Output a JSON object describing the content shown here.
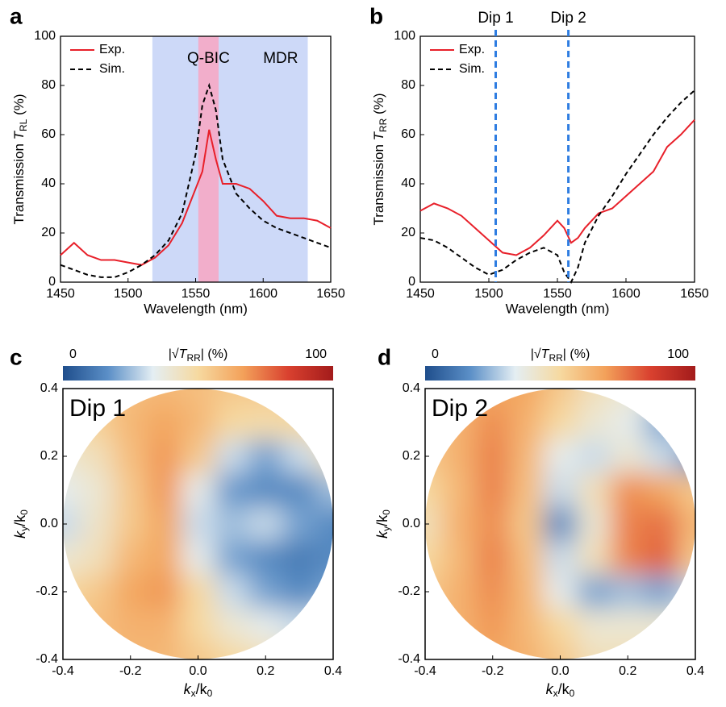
{
  "chart_data": [
    {
      "panel": "a",
      "type": "line",
      "xlabel": "Wavelength (nm)",
      "ylabel": [
        "Transmission ",
        "T",
        "RL",
        " (%)"
      ],
      "xlim": [
        1450,
        1650
      ],
      "xticks": [
        1450,
        1500,
        1550,
        1600,
        1650
      ],
      "ylim": [
        0,
        100
      ],
      "yticks": [
        0,
        20,
        40,
        60,
        80,
        100
      ],
      "bands": [
        {
          "label": "MDR",
          "range": [
            1518,
            1633
          ],
          "color": "#cdd9f8",
          "label_color": "#3a78d8"
        },
        {
          "label": "Q-BIC",
          "range": [
            1552,
            1567
          ],
          "color": "#f2aecb",
          "label_color": "#e8202a"
        }
      ],
      "x": [
        1450,
        1460,
        1470,
        1480,
        1490,
        1500,
        1510,
        1520,
        1530,
        1540,
        1550,
        1555,
        1560,
        1565,
        1570,
        1580,
        1590,
        1600,
        1610,
        1620,
        1630,
        1640,
        1650
      ],
      "series": [
        {
          "name": "Exp.",
          "color": "#e8202a",
          "dash": false,
          "values": [
            11,
            16,
            11,
            9,
            9,
            8,
            7,
            10,
            15,
            24,
            38,
            45,
            62,
            50,
            40,
            40,
            38,
            33,
            27,
            26,
            26,
            25,
            22
          ]
        },
        {
          "name": "Sim.",
          "color": "#000000",
          "dash": true,
          "values": [
            7,
            5,
            3,
            2,
            2,
            4,
            7,
            11,
            17,
            28,
            52,
            72,
            80,
            70,
            50,
            36,
            30,
            25,
            22,
            20,
            18,
            16,
            14
          ]
        }
      ]
    },
    {
      "panel": "b",
      "type": "line",
      "xlabel": "Wavelength (nm)",
      "ylabel": [
        "Transmission ",
        "T",
        "RR",
        " (%)"
      ],
      "xlim": [
        1450,
        1650
      ],
      "xticks": [
        1450,
        1500,
        1550,
        1600,
        1650
      ],
      "ylim": [
        0,
        100
      ],
      "yticks": [
        0,
        20,
        40,
        60,
        80,
        100
      ],
      "vlines": [
        {
          "label": "Dip 1",
          "x": 1505,
          "color": "#2f7de1"
        },
        {
          "label": "Dip 2",
          "x": 1558,
          "color": "#2f7de1"
        }
      ],
      "x": [
        1450,
        1460,
        1470,
        1480,
        1490,
        1500,
        1510,
        1520,
        1530,
        1540,
        1550,
        1555,
        1560,
        1565,
        1570,
        1580,
        1590,
        1600,
        1610,
        1620,
        1630,
        1640,
        1650
      ],
      "series": [
        {
          "name": "Exp.",
          "color": "#e8202a",
          "dash": false,
          "values": [
            29,
            32,
            30,
            27,
            22,
            17,
            12,
            11,
            14,
            19,
            25,
            22,
            16,
            18,
            22,
            28,
            30,
            35,
            40,
            45,
            55,
            60,
            66
          ]
        },
        {
          "name": "Sim.",
          "color": "#000000",
          "dash": true,
          "values": [
            18,
            17,
            14,
            10,
            6,
            3,
            5,
            9,
            12,
            14,
            11,
            4,
            0,
            6,
            16,
            27,
            35,
            44,
            52,
            60,
            67,
            73,
            78
          ]
        }
      ]
    },
    {
      "panel": "c",
      "type": "heatmap",
      "annotation": "Dip 1",
      "xlabel": [
        "k",
        "x",
        "/k",
        "0"
      ],
      "ylabel": [
        "k",
        "y",
        "/k",
        "0"
      ],
      "cbar_label": [
        "|√",
        "T",
        "RR",
        "| (%)"
      ],
      "clim": [
        0,
        100
      ],
      "cticks": [
        0,
        100
      ],
      "colormap": [
        "#1f4e8c",
        "#5b8fc7",
        "#e4eef3",
        "#f6d9a0",
        "#f3a15a",
        "#d9412f",
        "#a31b1b"
      ],
      "xlim": [
        -0.4,
        0.4
      ],
      "ylim": [
        -0.4,
        0.4
      ],
      "xticks": [
        -0.4,
        -0.2,
        {
          "value": 0,
          "label": "0.0"
        },
        0.2,
        0.4
      ],
      "yticks": [
        -0.4,
        -0.2,
        {
          "value": 0,
          "label": "0.0"
        },
        0.2,
        0.4
      ],
      "x": [
        -0.4,
        -0.3,
        -0.2,
        -0.1,
        0,
        0.1,
        0.2,
        0.3,
        0.4
      ],
      "y": [
        0.4,
        0.3,
        0.2,
        0.1,
        0,
        -0.1,
        -0.2,
        -0.3,
        -0.4
      ],
      "z": [
        [
          55,
          55,
          58,
          60,
          58,
          55,
          55,
          55,
          55
        ],
        [
          50,
          52,
          60,
          65,
          60,
          50,
          48,
          50,
          52
        ],
        [
          40,
          45,
          58,
          68,
          55,
          30,
          20,
          30,
          45
        ],
        [
          35,
          40,
          55,
          68,
          35,
          18,
          15,
          15,
          25
        ],
        [
          30,
          42,
          55,
          65,
          30,
          25,
          30,
          20,
          15
        ],
        [
          40,
          45,
          60,
          65,
          35,
          20,
          15,
          12,
          15
        ],
        [
          50,
          55,
          65,
          68,
          50,
          30,
          20,
          15,
          20
        ],
        [
          55,
          58,
          62,
          62,
          50,
          40,
          35,
          30,
          35
        ],
        [
          55,
          58,
          60,
          60,
          55,
          50,
          45,
          40,
          40
        ]
      ]
    },
    {
      "panel": "d",
      "type": "heatmap",
      "annotation": "Dip 2",
      "xlabel": [
        "k",
        "x",
        "/k",
        "0"
      ],
      "ylabel": [
        "k",
        "y",
        "/k",
        "0"
      ],
      "cbar_label": [
        "|√",
        "T",
        "RR",
        "| (%)"
      ],
      "clim": [
        0,
        100
      ],
      "cticks": [
        0,
        100
      ],
      "colormap": [
        "#1f4e8c",
        "#5b8fc7",
        "#e4eef3",
        "#f6d9a0",
        "#f3a15a",
        "#d9412f",
        "#a31b1b"
      ],
      "xlim": [
        -0.4,
        0.4
      ],
      "ylim": [
        -0.4,
        0.4
      ],
      "xticks": [
        -0.4,
        -0.2,
        {
          "value": 0,
          "label": "0.0"
        },
        0.2,
        0.4
      ],
      "yticks": [
        -0.4,
        -0.2,
        {
          "value": 0,
          "label": "0.0"
        },
        0.2,
        0.4
      ],
      "x": [
        -0.4,
        -0.3,
        -0.2,
        -0.1,
        0,
        0.1,
        0.2,
        0.3,
        0.4
      ],
      "y": [
        0.4,
        0.3,
        0.2,
        0.1,
        0,
        -0.1,
        -0.2,
        -0.3,
        -0.4
      ],
      "z": [
        [
          60,
          62,
          65,
          65,
          55,
          45,
          40,
          40,
          40
        ],
        [
          55,
          62,
          70,
          62,
          50,
          40,
          35,
          20,
          40
        ],
        [
          55,
          62,
          72,
          60,
          35,
          30,
          40,
          30,
          15
        ],
        [
          50,
          60,
          72,
          58,
          30,
          45,
          70,
          65,
          55
        ],
        [
          45,
          62,
          70,
          55,
          15,
          40,
          72,
          75,
          60
        ],
        [
          50,
          60,
          72,
          58,
          30,
          45,
          72,
          78,
          55
        ],
        [
          55,
          62,
          70,
          60,
          35,
          20,
          25,
          20,
          30
        ],
        [
          58,
          62,
          68,
          60,
          50,
          40,
          40,
          40,
          40
        ],
        [
          60,
          62,
          65,
          62,
          55,
          45,
          45,
          45,
          45
        ]
      ]
    }
  ]
}
